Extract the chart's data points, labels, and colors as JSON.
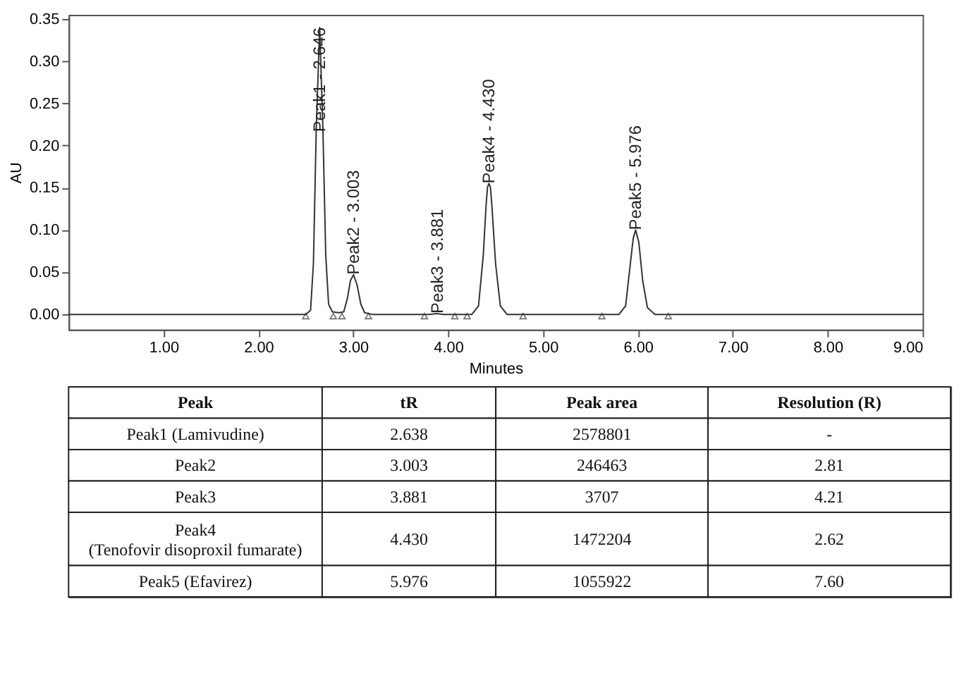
{
  "chart_data": [
    {
      "type": "line",
      "xlabel": "Minutes",
      "ylabel": "AU",
      "xlim": [
        0,
        9
      ],
      "ylim": [
        -0.018,
        0.355
      ],
      "xticks": [
        {
          "value": 1,
          "label": "1.00"
        },
        {
          "value": 2,
          "label": "2.00"
        },
        {
          "value": 3,
          "label": "3.00"
        },
        {
          "value": 4,
          "label": "4.00"
        },
        {
          "value": 5,
          "label": "5.00"
        },
        {
          "value": 6,
          "label": "6.00"
        },
        {
          "value": 7,
          "label": "7.00"
        },
        {
          "value": 8,
          "label": "8.00"
        },
        {
          "value": 9,
          "label": "9.00"
        }
      ],
      "yticks": [
        {
          "value": 0,
          "label": "0.00"
        },
        {
          "value": 0.05,
          "label": "0.05"
        },
        {
          "value": 0.1,
          "label": "0.10"
        },
        {
          "value": 0.15,
          "label": "0.15"
        },
        {
          "value": 0.2,
          "label": "0.20"
        },
        {
          "value": 0.25,
          "label": "0.25"
        },
        {
          "value": 0.3,
          "label": "0.30"
        },
        {
          "value": 0.35,
          "label": "0.35"
        }
      ],
      "grid": false,
      "series": [
        {
          "type": "line",
          "marker": "none",
          "color": "#333333",
          "x": [
            0,
            2.5,
            2.55,
            2.58,
            2.61,
            2.646,
            2.68,
            2.71,
            2.74,
            2.78,
            2.85,
            2.9,
            2.94,
            2.97,
            3.003,
            3.04,
            3.08,
            3.12,
            3.2,
            3.8,
            3.881,
            3.95,
            4.25,
            4.32,
            4.37,
            4.4,
            4.415,
            4.43,
            4.445,
            4.46,
            4.5,
            4.55,
            4.62,
            5.8,
            5.87,
            5.92,
            5.95,
            5.976,
            6.01,
            6.05,
            6.1,
            6.18,
            9
          ],
          "values": [
            0,
            0,
            0.005,
            0.06,
            0.22,
            0.34,
            0.22,
            0.07,
            0.012,
            0.003,
            0.002,
            0.003,
            0.02,
            0.04,
            0.047,
            0.035,
            0.012,
            0.002,
            0,
            0,
            0.001,
            0,
            0,
            0.01,
            0.07,
            0.13,
            0.151,
            0.155,
            0.151,
            0.13,
            0.06,
            0.01,
            0,
            0,
            0.01,
            0.06,
            0.09,
            0.1,
            0.085,
            0.04,
            0.008,
            0,
            0
          ]
        },
        {
          "type": "scatter",
          "marker": "triangle",
          "color": "#333333",
          "x": [
            2.5,
            2.79,
            2.88,
            3.16,
            3.75,
            4.07,
            4.2,
            4.79,
            5.62,
            6.32
          ],
          "values": [
            -0.002,
            -0.002,
            -0.002,
            -0.002,
            -0.002,
            -0.002,
            -0.002,
            -0.002,
            -0.002,
            -0.002
          ]
        }
      ],
      "annotations": [
        {
          "text": "Peak1 - 2.646",
          "x": 2.646,
          "y": 0.34
        },
        {
          "text": "Peak2 - 3.003",
          "x": 3.003,
          "y": 0.047
        },
        {
          "text": "Peak3 - 3.881",
          "x": 3.881,
          "y": 0.001
        },
        {
          "text": "Peak4 - 4.430",
          "x": 4.43,
          "y": 0.155
        },
        {
          "text": "Peak5 - 5.976",
          "x": 5.976,
          "y": 0.1
        }
      ]
    },
    {
      "type": "other",
      "categories": [
        "Peak",
        "tR",
        "Peak area",
        "Resolution (R)"
      ],
      "annotations": [
        "Peak1 (Lamivudine)",
        "2.638",
        "2578801",
        "-",
        "Peak2",
        "3.003",
        "246463",
        "2.81",
        "Peak3",
        "3.881",
        "3707",
        "4.21",
        "Peak4\n(Tenofovir disoproxil fumarate)",
        "4.430",
        "1472204",
        "2.62",
        "Peak5 (Efavirez)",
        "5.976",
        "1055922",
        "7.60"
      ]
    }
  ]
}
